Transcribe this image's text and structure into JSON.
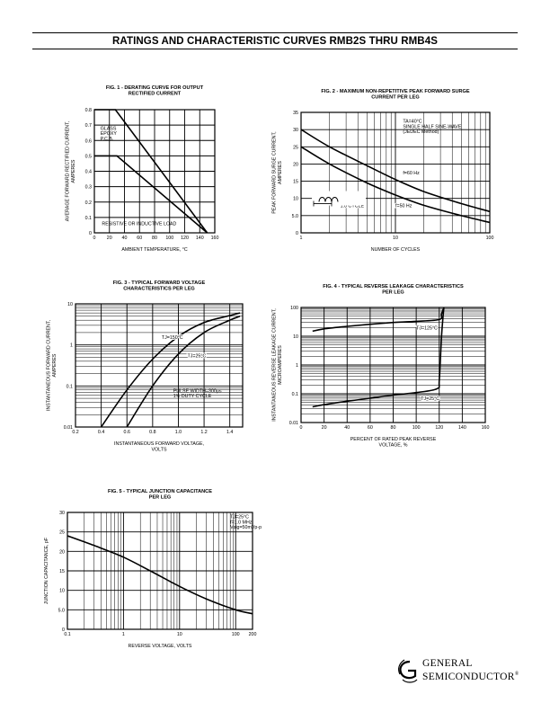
{
  "header": {
    "title": "RATINGS AND CHARACTERISTIC CURVES RMB2S THRU RMB4S"
  },
  "logo": {
    "line1": "GENERAL",
    "line2": "SEMICONDUCTOR",
    "mark": "®"
  },
  "chart_data": [
    {
      "id": "fig1",
      "type": "line",
      "title": "FIG. 1 - DERATING CURVE FOR OUTPUT RECTIFIED CURRENT",
      "title_lines": [
        "FIG. 1 - DERATING CURVE FOR OUTPUT",
        "RECTIFIED CURRENT"
      ],
      "xlabel": "AMBIENT TEMPERATURE, °C",
      "ylabel": "AVERAGE FORWARD RECTIFIED CURRENT, AMPERES",
      "ylabel_lines": [
        "AVERAGE FORWARD RECTIFIED CURRENT,",
        "AMPERES"
      ],
      "xscale": "linear",
      "yscale": "linear",
      "xlim": [
        0,
        160
      ],
      "ylim": [
        0,
        0.8
      ],
      "xticks": [
        0,
        20,
        40,
        60,
        80,
        100,
        120,
        140,
        160
      ],
      "xtick_labels": [
        "0",
        "20",
        "40",
        "60",
        "80",
        "100",
        "120",
        "140",
        "160"
      ],
      "yticks": [
        0,
        0.1,
        0.2,
        0.3,
        0.4,
        0.5,
        0.6,
        0.7,
        0.8
      ],
      "ytick_labels": [
        "0",
        "0.1",
        "0.2",
        "0.3",
        "0.4",
        "0.5",
        "0.6",
        "0.7",
        "0.8"
      ],
      "series": [
        {
          "name": "GLASS EPOXY P.C.B.",
          "x": [
            0,
            28,
            150
          ],
          "y": [
            0.8,
            0.8,
            0
          ]
        },
        {
          "name": "RESISTIVE OR INDUCTIVE LOAD",
          "x": [
            0,
            30,
            150
          ],
          "y": [
            0.5,
            0.5,
            0
          ]
        }
      ],
      "annotations": [
        {
          "lines": [
            "GLASS",
            "EPOXY",
            "P.C.B."
          ],
          "x": 8,
          "y": 0.67
        },
        {
          "lines": [
            "RESISTIVE OR INDUCTIVE LOAD"
          ],
          "x": 10,
          "y": 0.05
        }
      ]
    },
    {
      "id": "fig2",
      "type": "line",
      "title": "FIG. 2 - MAXIMUM NON-REPETITIVE PEAK FORWARD SURGE CURRENT PER LEG",
      "title_lines": [
        "FIG. 2 - MAXIMUM NON-REPETITIVE PEAK FORWARD SURGE",
        "CURRENT PER LEG"
      ],
      "xlabel": "NUMBER OF CYCLES",
      "ylabel": "PEAK FORWARD SURGE CURRENT, AMPERES",
      "ylabel_lines": [
        "PEAK FORWARD SURGE CURRENT,",
        "AMPERES"
      ],
      "xscale": "log",
      "yscale": "linear",
      "xlim": [
        1,
        100
      ],
      "ylim": [
        0,
        35
      ],
      "xticks": [
        1,
        10,
        100
      ],
      "xtick_labels": [
        "1",
        "10",
        "100"
      ],
      "yticks": [
        0,
        5,
        10,
        15,
        20,
        25,
        30,
        35
      ],
      "ytick_labels": [
        "0",
        "5.0",
        "10",
        "15",
        "20",
        "25",
        "30",
        "35"
      ],
      "series": [
        {
          "name": "f=60 Hz",
          "x": [
            1,
            2,
            5,
            10,
            20,
            50,
            100
          ],
          "y": [
            30,
            25,
            19.5,
            15.5,
            12,
            8.5,
            6.2
          ]
        },
        {
          "name": "f=50 Hz",
          "x": [
            1,
            2,
            5,
            10,
            20,
            50,
            100
          ],
          "y": [
            25,
            20,
            14.5,
            11,
            8,
            5,
            3
          ]
        }
      ],
      "annotations": [
        {
          "lines": [
            "TA=40°C",
            "SINGLE HALF SINE-WAVE",
            "(JEDEC Method)"
          ],
          "x": 12,
          "y": 32
        },
        {
          "lines": [
            "f=60 Hz"
          ],
          "x": 12,
          "y": 17
        },
        {
          "lines": [
            "f=50 Hz"
          ],
          "x": 10,
          "y": 7.5
        },
        {
          "lines": [
            "1.0 CYCLE"
          ],
          "x": 2.6,
          "y": 7.5
        }
      ]
    },
    {
      "id": "fig3",
      "type": "line",
      "title": "FIG. 3 - TYPICAL FORWARD VOLTAGE CHARACTERISTICS PER LEG",
      "title_lines": [
        "FIG. 3 - TYPICAL FORWARD VOLTAGE",
        "CHARACTERISTICS PER LEG"
      ],
      "xlabel": "INSTANTANEOUS FORWARD VOLTAGE, VOLTS",
      "xlabel_lines": [
        "INSTANTANEOUS FORWARD VOLTAGE,",
        "VOLTS"
      ],
      "ylabel": "INSTANTANEOUS FORWARD CURRENT, AMPERES",
      "ylabel_lines": [
        "INSTANTANEOUS FORWARD CURRENT,",
        "AMPERES"
      ],
      "xscale": "linear",
      "yscale": "log",
      "xlim": [
        0.2,
        1.5
      ],
      "ylim": [
        0.01,
        10
      ],
      "xticks": [
        0.2,
        0.4,
        0.6,
        0.8,
        1.0,
        1.2,
        1.4
      ],
      "xtick_labels": [
        "0.2",
        "0.4",
        "0.6",
        "0.8",
        "1.0",
        "1.2",
        "1.4"
      ],
      "yticks": [
        0.01,
        0.1,
        1,
        10
      ],
      "ytick_labels": [
        "0.01",
        "0.1",
        "1",
        "10"
      ],
      "series": [
        {
          "name": "TJ=150°C",
          "x": [
            0.4,
            0.6,
            0.8,
            1.0,
            1.2,
            1.4,
            1.48
          ],
          "y": [
            0.01,
            0.08,
            0.45,
            1.6,
            3.5,
            5.2,
            6
          ]
        },
        {
          "name": "TJ=25°C",
          "x": [
            0.6,
            0.8,
            1.0,
            1.2,
            1.4,
            1.48
          ],
          "y": [
            0.01,
            0.1,
            0.6,
            2,
            4,
            5
          ]
        }
      ],
      "annotations": [
        {
          "lines": [
            "TJ=150°C"
          ],
          "x": 0.87,
          "y": 1.4
        },
        {
          "lines": [
            "TJ=25°C"
          ],
          "x": 1.07,
          "y": 0.5
        },
        {
          "lines": [
            "PULSE WIDTH=300µs",
            "1% DUTY CYCLE"
          ],
          "x": 0.96,
          "y": 0.07
        }
      ]
    },
    {
      "id": "fig4",
      "type": "line",
      "title": "FIG. 4 - TYPICAL REVERSE LEAKAGE CHARACTERISTICS PER LEG",
      "title_lines": [
        "FIG. 4 - TYPICAL REVERSE LEAKAGE CHARACTERISTICS",
        "PER LEG"
      ],
      "xlabel": "PERCENT OF RATED PEAK REVERSE VOLTAGE, %",
      "xlabel_lines": [
        "PERCENT OF RATED PEAK REVERSE",
        "VOLTAGE, %"
      ],
      "ylabel": "INSTANTANEOUS REVERSE LEAKAGE CURRENT, MICROAMPERES",
      "ylabel_lines": [
        "INSTANTANEOUS REVERSE LEAKAGE CURRENT,",
        "MICROAMPERES"
      ],
      "xscale": "linear",
      "yscale": "log",
      "xlim": [
        0,
        160
      ],
      "ylim": [
        0.01,
        100
      ],
      "xticks": [
        0,
        20,
        40,
        60,
        80,
        100,
        120,
        140,
        160
      ],
      "xtick_labels": [
        "0",
        "20",
        "40",
        "60",
        "80",
        "100",
        "120",
        "140",
        "160"
      ],
      "yticks": [
        0.01,
        0.1,
        1,
        10,
        100
      ],
      "ytick_labels": [
        "0.01",
        "0.1",
        "1",
        "10",
        "100"
      ],
      "series": [
        {
          "name": "TJ=125°C",
          "x": [
            10,
            20,
            40,
            60,
            80,
            100,
            120,
            122,
            124
          ],
          "y": [
            15,
            18,
            22,
            26,
            30,
            33,
            38,
            60,
            100
          ]
        },
        {
          "name": "TJ=25°C",
          "x": [
            10,
            20,
            40,
            60,
            80,
            100,
            118,
            120,
            122,
            124
          ],
          "y": [
            0.035,
            0.042,
            0.055,
            0.07,
            0.09,
            0.11,
            0.15,
            0.3,
            10,
            100
          ]
        }
      ],
      "annotations": [
        {
          "lines": [
            "TJ=125°C"
          ],
          "x": 100,
          "y": 17
        },
        {
          "lines": [
            "TJ=25°C"
          ],
          "x": 104,
          "y": 0.06
        }
      ]
    },
    {
      "id": "fig5",
      "type": "line",
      "title": "FIG. 5 - TYPICAL JUNCTION CAPACITANCE PER LEG",
      "title_lines": [
        "FIG. 5 - TYPICAL JUNCTION CAPACITANCE",
        "PER LEG"
      ],
      "xlabel": "REVERSE VOLTAGE, VOLTS",
      "ylabel": "JUNCTION CAPACITANCE, pF",
      "ylabel_lines": [
        "JUNCTION CAPACITANCE, pF"
      ],
      "xscale": "log",
      "yscale": "linear",
      "xlim": [
        0.1,
        200
      ],
      "ylim": [
        0,
        30
      ],
      "xticks": [
        0.1,
        1,
        10,
        100,
        200
      ],
      "xtick_labels": [
        "0.1",
        "1",
        "10",
        "100",
        "200"
      ],
      "yticks": [
        0,
        5,
        10,
        15,
        20,
        25,
        30
      ],
      "ytick_labels": [
        "0",
        "5.0",
        "10",
        "15",
        "20",
        "25",
        "30"
      ],
      "series": [
        {
          "name": "TJ=25°C",
          "x": [
            0.1,
            0.3,
            1,
            3,
            10,
            30,
            100,
            200
          ],
          "y": [
            24,
            21.5,
            18.5,
            15,
            11,
            7.8,
            5,
            4
          ]
        }
      ],
      "annotations": [
        {
          "lines": [
            "TJ=25°C",
            "f=1.0 MHz",
            "Vsig=50mVp-p"
          ],
          "x": 80,
          "y": 28.5
        }
      ]
    }
  ]
}
